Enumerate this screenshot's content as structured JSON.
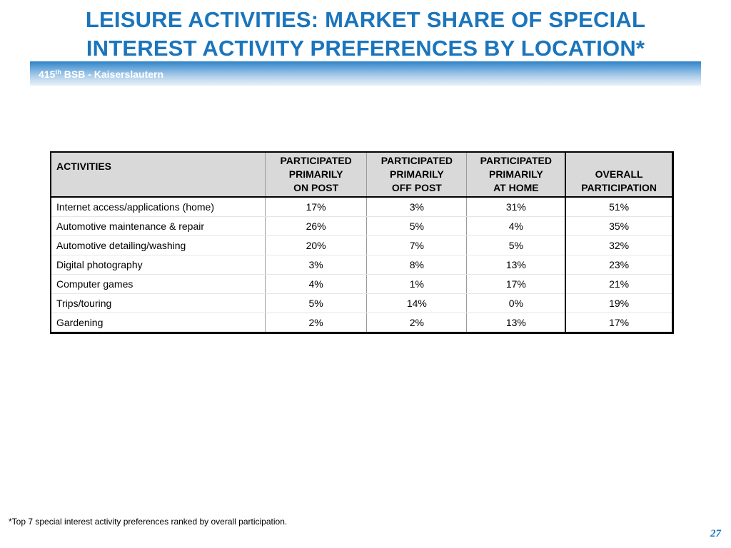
{
  "slide": {
    "title_line1": "LEISURE ACTIVITIES:  MARKET SHARE OF SPECIAL",
    "title_line2": "INTEREST ACTIVITY PREFERENCES BY LOCATION*",
    "band_prefix": "415",
    "band_sup": "th",
    "band_suffix": " BSB - Kaiserslautern",
    "footnote": "*Top 7 special interest activity preferences ranked by overall participation.",
    "page_number": "27"
  },
  "table": {
    "headers": {
      "activities": "ACTIVITIES",
      "on_post": [
        "PARTICIPATED",
        "PRIMARILY",
        "ON POST"
      ],
      "off_post": [
        "PARTICIPATED",
        "PRIMARILY",
        "OFF POST"
      ],
      "at_home": [
        "PARTICIPATED",
        "PRIMARILY",
        "AT HOME"
      ],
      "overall": [
        "OVERALL",
        "PARTICIPATION"
      ]
    },
    "rows": [
      {
        "activity": "Internet access/applications (home)",
        "on_post": "17%",
        "off_post": "3%",
        "at_home": "31%",
        "overall": "51%"
      },
      {
        "activity": "Automotive maintenance & repair",
        "on_post": "26%",
        "off_post": "5%",
        "at_home": "4%",
        "overall": "35%"
      },
      {
        "activity": "Automotive detailing/washing",
        "on_post": "20%",
        "off_post": "7%",
        "at_home": "5%",
        "overall": "32%"
      },
      {
        "activity": "Digital photography",
        "on_post": "3%",
        "off_post": "8%",
        "at_home": "13%",
        "overall": "23%"
      },
      {
        "activity": "Computer games",
        "on_post": "4%",
        "off_post": "1%",
        "at_home": "17%",
        "overall": "21%"
      },
      {
        "activity": "Trips/touring",
        "on_post": "5%",
        "off_post": "14%",
        "at_home": "0%",
        "overall": "19%"
      },
      {
        "activity": "Gardening",
        "on_post": "2%",
        "off_post": "2%",
        "at_home": "13%",
        "overall": "17%"
      }
    ]
  }
}
